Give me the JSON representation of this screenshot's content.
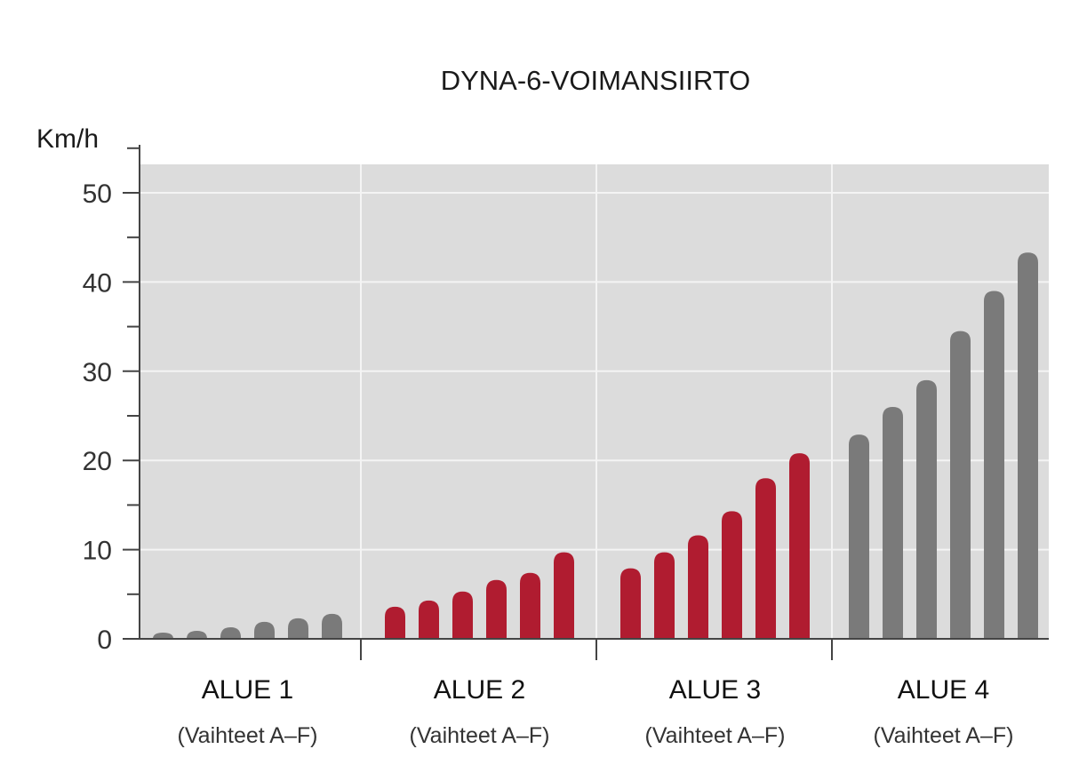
{
  "chart_data": {
    "type": "bar",
    "title": "DYNA-6-VOIMANSIIRTO",
    "ylabel": "Km/h",
    "xlabel": "",
    "ylim": [
      0,
      53
    ],
    "y_ticks": [
      0,
      10,
      20,
      30,
      40,
      50
    ],
    "grid": true,
    "groups": [
      {
        "label": "ALUE 1",
        "sublabel": "(Vaihteet A–F)",
        "color": "#7a7a7a",
        "values": [
          0.7,
          0.9,
          1.3,
          1.9,
          2.3,
          2.8
        ]
      },
      {
        "label": "ALUE 2",
        "sublabel": "(Vaihteet A–F)",
        "color": "#b01c30",
        "values": [
          3.6,
          4.3,
          5.3,
          6.6,
          7.4,
          9.7
        ]
      },
      {
        "label": "ALUE 3",
        "sublabel": "(Vaihteet A–F)",
        "color": "#b01c30",
        "values": [
          7.9,
          9.7,
          11.6,
          14.3,
          18.0,
          20.8
        ]
      },
      {
        "label": "ALUE 4",
        "sublabel": "(Vaihteet A–F)",
        "color": "#7a7a7a",
        "values": [
          22.9,
          26.0,
          29.0,
          34.5,
          39.0,
          43.3
        ]
      }
    ],
    "colors": {
      "plot_bg": "#dcdcdc",
      "gridline": "#f4f4f4",
      "axis": "#444444",
      "gray_bar": "#7a7a7a",
      "red_bar": "#b01c30"
    }
  }
}
